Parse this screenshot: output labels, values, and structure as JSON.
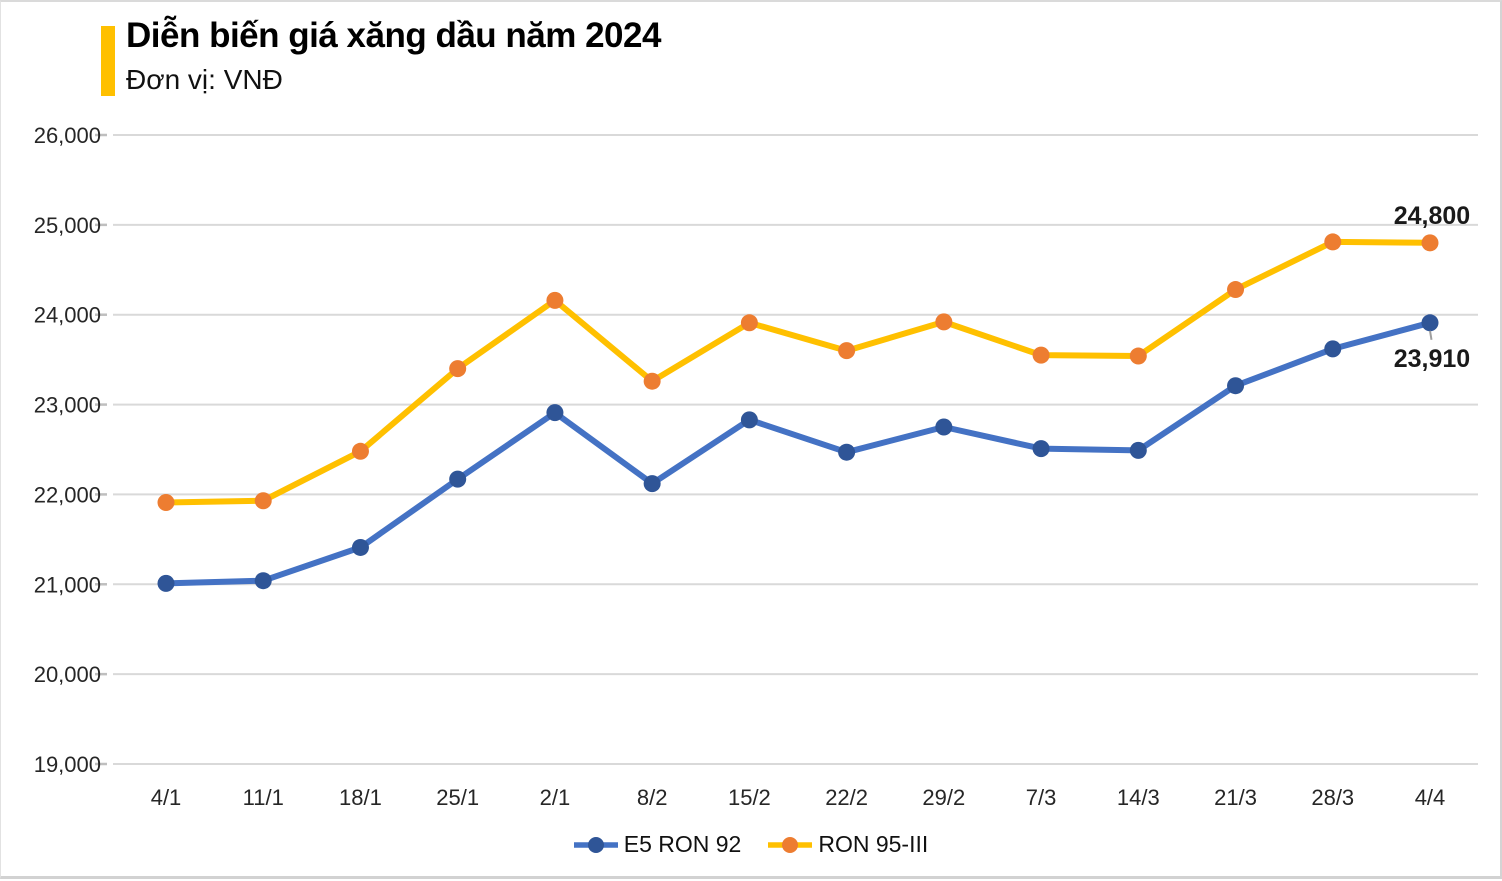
{
  "header": {
    "title": "Diễn biến giá xăng dầu năm 2024",
    "subtitle": "Đơn vị: VNĐ",
    "accent_color": "#FFC000"
  },
  "chart_data": {
    "type": "line",
    "title": "Diễn biến giá xăng dầu năm 2024",
    "unit_label": "Đơn vị: VNĐ",
    "categories": [
      "4/1",
      "11/1",
      "18/1",
      "25/1",
      "2/1",
      "8/2",
      "15/2",
      "22/2",
      "29/2",
      "7/3",
      "14/3",
      "21/3",
      "28/3",
      "4/4"
    ],
    "series": [
      {
        "name": "E5 RON 92",
        "line_color": "#4472C4",
        "marker_color": "#2F5597",
        "values": [
          21010,
          21040,
          21410,
          22170,
          22910,
          22120,
          22830,
          22470,
          22750,
          22510,
          22490,
          23210,
          23620,
          23910
        ]
      },
      {
        "name": "RON 95-III",
        "line_color": "#FFC000",
        "marker_color": "#ED7D31",
        "values": [
          21910,
          21930,
          22480,
          23400,
          24160,
          23260,
          23910,
          23600,
          23920,
          23550,
          23540,
          24280,
          24810,
          24800
        ]
      }
    ],
    "ylim": [
      19000,
      26000
    ],
    "ytick_step": 1000,
    "ytick_labels": [
      "19,000",
      "20,000",
      "21,000",
      "22,000",
      "23,000",
      "24,000",
      "25,000",
      "26,000"
    ],
    "grid": true,
    "legend_position": "bottom",
    "annotations": [
      {
        "text": "24,800",
        "series": "RON 95-III",
        "category": "4/4"
      },
      {
        "text": "23,910",
        "series": "E5 RON 92",
        "category": "4/4"
      }
    ],
    "colors": {
      "gridline": "#D9D9D9",
      "tick": "#BFBFBF",
      "axis_text": "#262626",
      "data_label_text": "#1a1a1a",
      "leader_line": "#9E9E9E"
    }
  }
}
